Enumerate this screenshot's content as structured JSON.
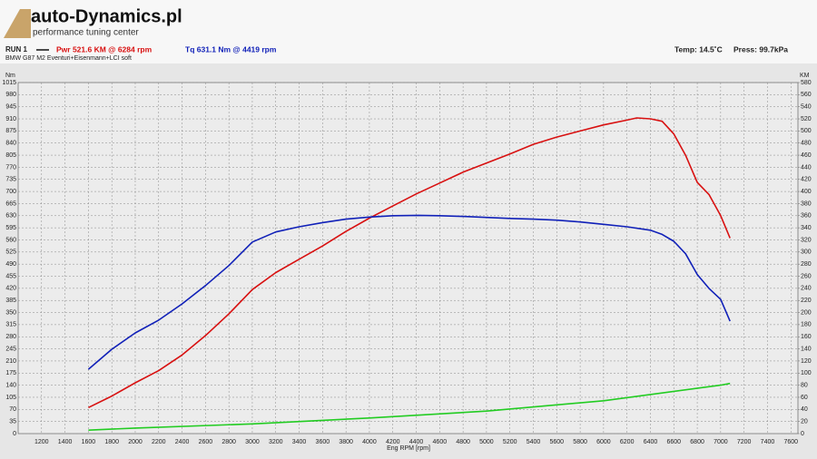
{
  "brand": {
    "name": "auto-Dynamics.pl",
    "tagline": "performance tuning center"
  },
  "run": {
    "label": "RUN 1",
    "power": "Pwr  521.6 KM @ 6284 rpm",
    "torque": "Tq 631.1 Nm @ 4419 rpm",
    "car": "BMW G87 M2 Eventuri+Eisenmann+LCI soft",
    "temp": "Temp: 14.5˚C",
    "press": "Press: 99.7kPa"
  },
  "chart_data": {
    "type": "line",
    "xlabel": "Eng RPM [rpm]",
    "ylabel": "Nm",
    "y2label": "KM",
    "xlim": [
      1000,
      7660
    ],
    "ylim": [
      0,
      1015
    ],
    "y2lim": [
      0,
      580
    ],
    "xticks": [
      1200,
      1400,
      1600,
      1800,
      2000,
      2200,
      2400,
      2600,
      2800,
      3000,
      3200,
      3400,
      3600,
      3800,
      4000,
      4200,
      4400,
      4600,
      4800,
      5000,
      5200,
      5400,
      5600,
      5800,
      6000,
      6200,
      6400,
      6600,
      6800,
      7000,
      7200,
      7400,
      7600
    ],
    "yticks": [
      0,
      35,
      70,
      105,
      140,
      175,
      210,
      245,
      280,
      315,
      350,
      385,
      420,
      455,
      490,
      525,
      560,
      595,
      630,
      665,
      700,
      735,
      770,
      805,
      840,
      875,
      910,
      945,
      980,
      1015
    ],
    "y2ticks": [
      0,
      20,
      40,
      60,
      80,
      100,
      120,
      140,
      160,
      180,
      200,
      220,
      240,
      260,
      280,
      300,
      320,
      340,
      360,
      380,
      400,
      420,
      440,
      460,
      480,
      500,
      520,
      540,
      560,
      580
    ],
    "grid": true,
    "series": [
      {
        "name": "Pwr",
        "color": "#d81010",
        "axis": "y2",
        "x": [
          1600,
          1800,
          2000,
          2200,
          2400,
          2600,
          2800,
          3000,
          3200,
          3400,
          3600,
          3800,
          4000,
          4200,
          4400,
          4600,
          4800,
          5000,
          5200,
          5400,
          5600,
          5800,
          6000,
          6200,
          6284,
          6400,
          6500,
          6600,
          6700,
          6800,
          6900,
          7000,
          7080
        ],
        "values": [
          43,
          62,
          84,
          104,
          130,
          162,
          198,
          238,
          266,
          288,
          310,
          334,
          356,
          376,
          396,
          414,
          432,
          447,
          462,
          478,
          490,
          500,
          510,
          518,
          521.6,
          520,
          516,
          495,
          460,
          415,
          395,
          360,
          323
        ]
      },
      {
        "name": "Tq",
        "color": "#1020b8",
        "axis": "y",
        "x": [
          1600,
          1800,
          2000,
          2200,
          2400,
          2600,
          2800,
          3000,
          3200,
          3400,
          3600,
          3800,
          4000,
          4200,
          4419,
          4600,
          4800,
          5000,
          5200,
          5400,
          5600,
          5800,
          6000,
          6200,
          6400,
          6500,
          6600,
          6700,
          6800,
          6900,
          7000,
          7080
        ],
        "values": [
          186,
          244,
          291,
          328,
          375,
          428,
          486,
          554,
          583,
          598,
          610,
          620,
          626,
          630,
          631.1,
          630,
          628,
          625,
          622,
          620,
          617,
          612,
          605,
          598,
          588,
          576,
          556,
          520,
          460,
          420,
          388,
          325
        ]
      },
      {
        "color": "#22cc22",
        "axis": "y",
        "x": [
          1600,
          2000,
          3000,
          4000,
          5000,
          6000,
          7000,
          7080
        ],
        "values": [
          10,
          16,
          28,
          45,
          65,
          95,
          140,
          145
        ]
      }
    ]
  }
}
